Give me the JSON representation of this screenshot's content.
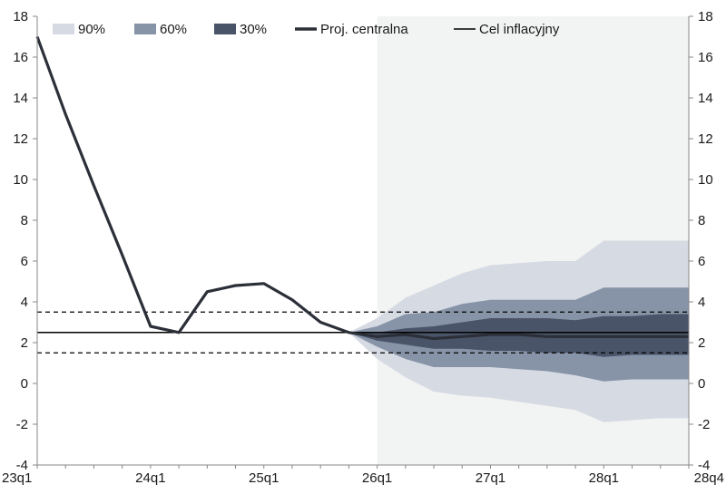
{
  "chart_data": {
    "type": "area",
    "title": "",
    "xlabel": "",
    "ylabel": "",
    "ylim": [
      -4,
      18
    ],
    "yticks": [
      -4,
      -2,
      0,
      2,
      4,
      6,
      8,
      10,
      12,
      14,
      16,
      18
    ],
    "dual_y_axis": true,
    "grid": false,
    "legend_placement": "top-left",
    "quarters": [
      "23q1",
      "23q2",
      "23q3",
      "23q4",
      "24q1",
      "24q2",
      "24q3",
      "24q4",
      "25q1",
      "25q2",
      "25q3",
      "25q4",
      "26q1",
      "26q2",
      "26q3",
      "26q4",
      "27q1",
      "27q2",
      "27q3",
      "27q4",
      "28q1",
      "28q2",
      "28q3",
      "28q4"
    ],
    "x_tick_labels": [
      {
        "quarter": "23q1",
        "label": "23q1"
      },
      {
        "quarter": "24q1",
        "label": "24q1"
      },
      {
        "quarter": "25q1",
        "label": "25q1"
      },
      {
        "quarter": "26q1",
        "label": "26q1"
      },
      {
        "quarter": "27q1",
        "label": "27q1"
      },
      {
        "quarter": "28q1",
        "label": "28q1"
      },
      {
        "quarter": "28q4",
        "label": "28q4"
      }
    ],
    "projection_start": "26q1",
    "colors": {
      "band_90": "#d6dae3",
      "band_60": "#8793a7",
      "band_30": "#4a5468",
      "central": "#2b2f38",
      "target": "#000000",
      "projection_bg": "#f2f3f3",
      "axis": "#888888"
    },
    "legend": [
      {
        "key": "band_90",
        "label": "90%",
        "kind": "swatch"
      },
      {
        "key": "band_60",
        "label": "60%",
        "kind": "swatch"
      },
      {
        "key": "band_30",
        "label": "30%",
        "kind": "swatch"
      },
      {
        "key": "central",
        "label": "Proj. centralna",
        "kind": "thick-line"
      },
      {
        "key": "target",
        "label": "Cel inflacyjny",
        "kind": "line"
      }
    ],
    "series": [
      {
        "key": "central",
        "name": "Proj. centralna",
        "x": [
          "23q1",
          "23q2",
          "23q3",
          "23q4",
          "24q1",
          "24q2",
          "24q3",
          "24q4",
          "25q1",
          "25q2",
          "25q3",
          "25q4",
          "26q1",
          "26q2",
          "26q3",
          "26q4",
          "27q1",
          "27q2",
          "27q3",
          "27q4",
          "28q1",
          "28q2",
          "28q3",
          "28q4"
        ],
        "values": [
          17.0,
          13.2,
          9.7,
          6.3,
          2.8,
          2.5,
          4.5,
          4.8,
          4.9,
          4.1,
          3.0,
          2.5,
          2.3,
          2.4,
          2.2,
          2.3,
          2.4,
          2.4,
          2.3,
          2.3,
          2.3,
          2.3,
          2.3,
          2.3
        ]
      }
    ],
    "fan_bands": {
      "x": [
        "25q4",
        "26q1",
        "26q2",
        "26q3",
        "26q4",
        "27q1",
        "27q2",
        "27q3",
        "27q4",
        "28q1",
        "28q2",
        "28q3",
        "28q4"
      ],
      "band_90": {
        "upper": [
          2.5,
          3.2,
          4.2,
          4.8,
          5.4,
          5.8,
          5.9,
          6.0,
          6.0,
          7.0,
          7.0,
          7.0,
          7.0
        ],
        "lower": [
          2.5,
          1.2,
          0.3,
          -0.4,
          -0.6,
          -0.7,
          -0.9,
          -1.1,
          -1.3,
          -1.9,
          -1.8,
          -1.7,
          -1.7
        ]
      },
      "band_60": {
        "upper": [
          2.5,
          2.8,
          3.4,
          3.5,
          3.9,
          4.1,
          4.1,
          4.1,
          4.1,
          4.7,
          4.7,
          4.7,
          4.7
        ],
        "lower": [
          2.5,
          1.8,
          1.2,
          0.8,
          0.8,
          0.8,
          0.7,
          0.6,
          0.4,
          0.1,
          0.2,
          0.2,
          0.2
        ]
      },
      "band_30": {
        "upper": [
          2.5,
          2.5,
          2.7,
          2.8,
          3.0,
          3.2,
          3.2,
          3.2,
          3.1,
          3.3,
          3.3,
          3.4,
          3.4
        ],
        "lower": [
          2.5,
          2.1,
          1.9,
          1.7,
          1.7,
          1.6,
          1.6,
          1.5,
          1.5,
          1.3,
          1.4,
          1.4,
          1.4
        ]
      }
    },
    "reference_lines": [
      {
        "key": "target",
        "name": "Cel inflacyjny",
        "value": 2.5,
        "style": "solid"
      },
      {
        "name": "upper tolerance",
        "value": 3.5,
        "style": "dashed"
      },
      {
        "name": "lower tolerance",
        "value": 1.5,
        "style": "dashed"
      }
    ]
  }
}
